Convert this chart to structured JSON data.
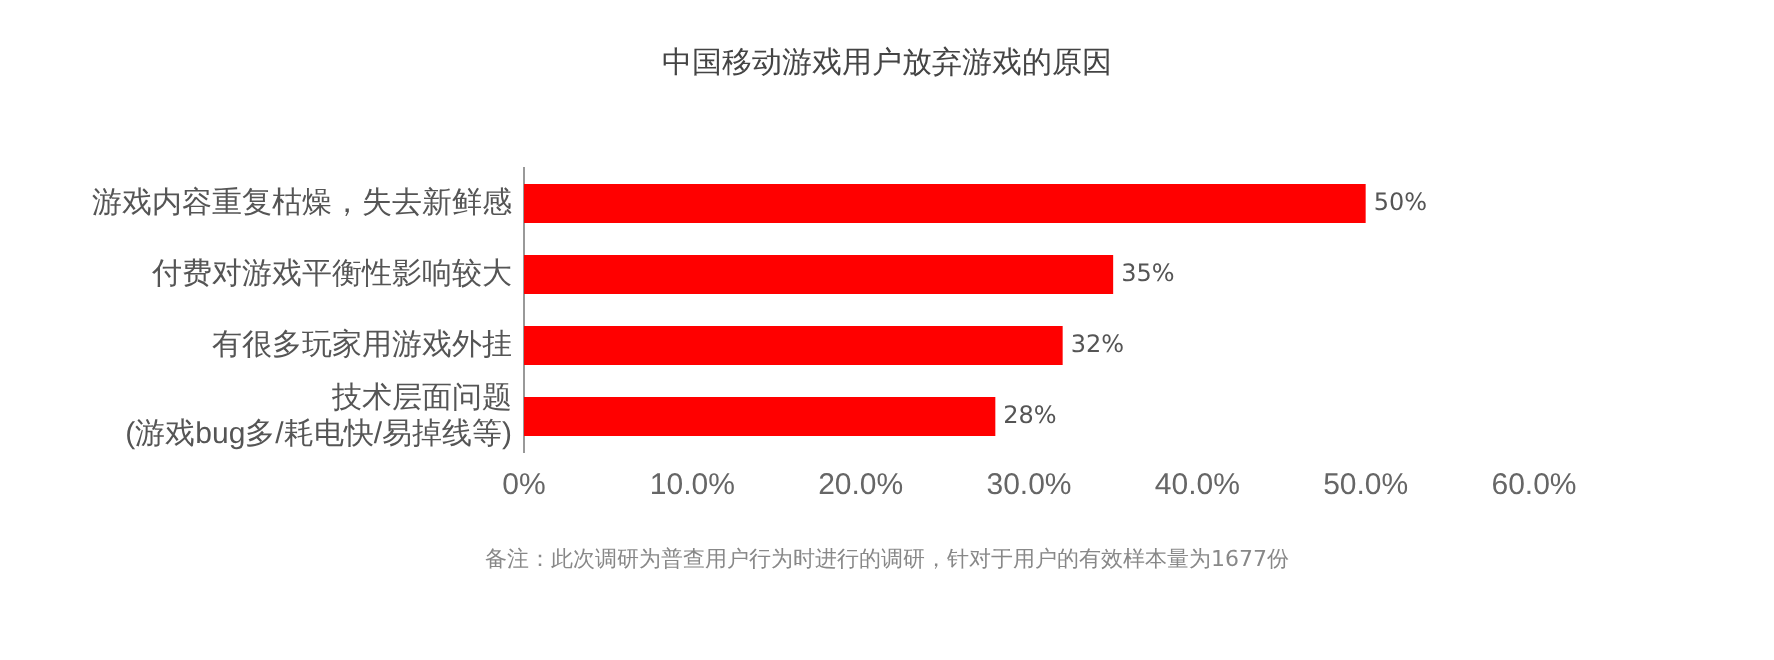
{
  "chart_data": {
    "type": "bar",
    "orientation": "horizontal",
    "title": "中国移动游戏用户放弃游戏的原因",
    "categories": [
      "游戏内容重复枯燥，失去新鲜感",
      "付费对游戏平衡性影响较大",
      "有很多玩家用游戏外挂",
      "技术层面问题\n(游戏bug多/耗电快/易掉线等)"
    ],
    "values": [
      50,
      35,
      32,
      28
    ],
    "color": "#ff0000",
    "value_labels": [
      "50%",
      "35%",
      "32%",
      "28%"
    ],
    "xlim": [
      0,
      60
    ],
    "xticks": [
      {
        "value": 0,
        "label": "0%"
      },
      {
        "value": 10,
        "label": "10.0%"
      },
      {
        "value": 20,
        "label": "20.0%"
      },
      {
        "value": 30,
        "label": "30.0%"
      },
      {
        "value": 40,
        "label": "40.0%"
      },
      {
        "value": 50,
        "label": "50.0%"
      },
      {
        "value": 60,
        "label": "60.0%"
      }
    ],
    "grid": false,
    "legend": false,
    "annotations": [
      "备注：此次调研为普查用户行为时进行的调研，针对于用户的有效样本量为1677份"
    ]
  }
}
